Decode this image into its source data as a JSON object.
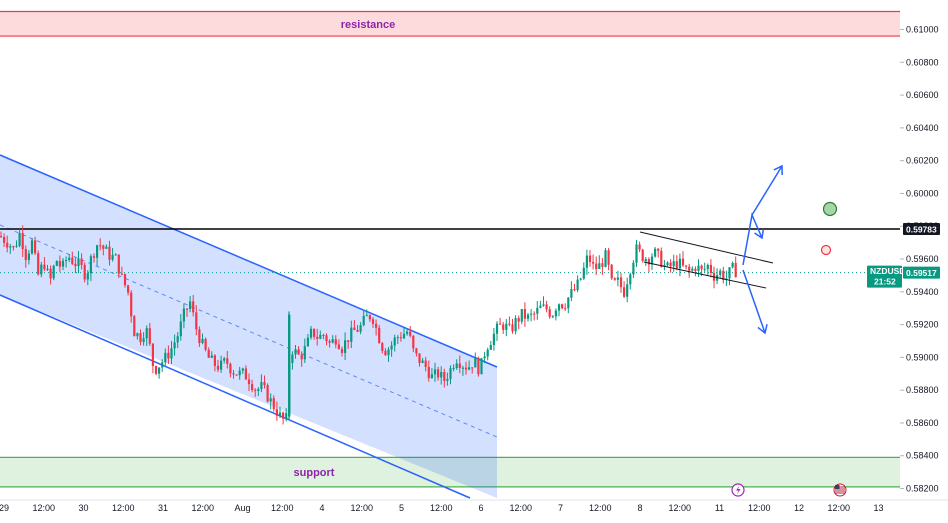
{
  "chart_data": {
    "type": "candlestick",
    "symbol": "NZDUSD",
    "current_price": "0.59517",
    "countdown": "21:52",
    "level_price": "0.59783",
    "y_ticks": [
      "0.61000",
      "0.60800",
      "0.60600",
      "0.60400",
      "0.60200",
      "0.60000",
      "0.59800",
      "0.59600",
      "0.59400",
      "0.59200",
      "0.59000",
      "0.58800",
      "0.58600",
      "0.58400",
      "0.58200"
    ],
    "x_ticks": [
      "29",
      "12:00",
      "30",
      "12:00",
      "31",
      "12:00",
      "Aug",
      "12:00",
      "4",
      "12:00",
      "5",
      "12:00",
      "6",
      "12:00",
      "7",
      "12:00",
      "8",
      "12:00",
      "11",
      "12:00",
      "12",
      "12:00",
      "13"
    ],
    "ylim": [
      0.5813,
      0.6118
    ],
    "zones": [
      {
        "label": "resistance",
        "from": 0.6096,
        "to": 0.6111,
        "color": "#f23645"
      },
      {
        "label": "support",
        "from": 0.5821,
        "to": 0.5839,
        "color": "#4caf50"
      }
    ],
    "price_path": [
      [
        0,
        0.5974
      ],
      [
        8,
        0.597
      ],
      [
        14,
        0.5966
      ],
      [
        20,
        0.5976
      ],
      [
        26,
        0.5962
      ],
      [
        32,
        0.597
      ],
      [
        38,
        0.595
      ],
      [
        44,
        0.5958
      ],
      [
        50,
        0.5946
      ],
      [
        56,
        0.596
      ],
      [
        62,
        0.5954
      ],
      [
        68,
        0.5962
      ],
      [
        74,
        0.5958
      ],
      [
        80,
        0.5956
      ],
      [
        86,
        0.595
      ],
      [
        92,
        0.5962
      ],
      [
        98,
        0.597
      ],
      [
        104,
        0.5966
      ],
      [
        110,
        0.5962
      ],
      [
        116,
        0.596
      ],
      [
        122,
        0.5948
      ],
      [
        128,
        0.594
      ],
      [
        134,
        0.5916
      ],
      [
        140,
        0.5912
      ],
      [
        146,
        0.5918
      ],
      [
        150,
        0.5906
      ],
      [
        154,
        0.5892
      ],
      [
        160,
        0.5896
      ],
      [
        166,
        0.59
      ],
      [
        172,
        0.5906
      ],
      [
        178,
        0.5914
      ],
      [
        184,
        0.5926
      ],
      [
        190,
        0.5934
      ],
      [
        196,
        0.5918
      ],
      [
        202,
        0.5908
      ],
      [
        208,
        0.59
      ],
      [
        214,
        0.5896
      ],
      [
        220,
        0.5894
      ],
      [
        226,
        0.5898
      ],
      [
        232,
        0.5892
      ],
      [
        238,
        0.589
      ],
      [
        244,
        0.589
      ],
      [
        250,
        0.5886
      ],
      [
        256,
        0.588
      ],
      [
        262,
        0.5882
      ],
      [
        268,
        0.5876
      ],
      [
        274,
        0.587
      ],
      [
        280,
        0.5864
      ],
      [
        286,
        0.586
      ],
      [
        290,
        0.5906
      ],
      [
        294,
        0.5904
      ],
      [
        300,
        0.59
      ],
      [
        306,
        0.5906
      ],
      [
        312,
        0.5916
      ],
      [
        318,
        0.5912
      ],
      [
        324,
        0.5914
      ],
      [
        330,
        0.5908
      ],
      [
        336,
        0.5912
      ],
      [
        342,
        0.5906
      ],
      [
        348,
        0.5912
      ],
      [
        354,
        0.5916
      ],
      [
        360,
        0.5918
      ],
      [
        366,
        0.5924
      ],
      [
        372,
        0.5926
      ],
      [
        378,
        0.5914
      ],
      [
        384,
        0.5904
      ],
      [
        390,
        0.5906
      ],
      [
        396,
        0.5912
      ],
      [
        402,
        0.5914
      ],
      [
        408,
        0.5916
      ],
      [
        414,
        0.5902
      ],
      [
        420,
        0.5898
      ],
      [
        426,
        0.5894
      ],
      [
        432,
        0.5888
      ],
      [
        438,
        0.589
      ],
      [
        444,
        0.5886
      ],
      [
        450,
        0.5892
      ],
      [
        456,
        0.59
      ],
      [
        462,
        0.5896
      ],
      [
        468,
        0.5894
      ],
      [
        474,
        0.5898
      ],
      [
        480,
        0.5892
      ],
      [
        486,
        0.5906
      ],
      [
        492,
        0.5912
      ],
      [
        498,
        0.5918
      ],
      [
        504,
        0.592
      ],
      [
        510,
        0.5916
      ],
      [
        516,
        0.5922
      ],
      [
        522,
        0.5926
      ],
      [
        528,
        0.5924
      ],
      [
        534,
        0.5926
      ],
      [
        540,
        0.593
      ],
      [
        546,
        0.593
      ],
      [
        552,
        0.5926
      ],
      [
        558,
        0.5934
      ],
      [
        564,
        0.5932
      ],
      [
        570,
        0.5938
      ],
      [
        576,
        0.5942
      ],
      [
        582,
        0.595
      ],
      [
        588,
        0.5962
      ],
      [
        594,
        0.5954
      ],
      [
        600,
        0.5956
      ],
      [
        606,
        0.5962
      ],
      [
        612,
        0.5944
      ],
      [
        618,
        0.5946
      ],
      [
        624,
        0.594
      ],
      [
        630,
        0.5954
      ],
      [
        636,
        0.5966
      ],
      [
        642,
        0.5962
      ],
      [
        648,
        0.596
      ],
      [
        654,
        0.5964
      ],
      [
        660,
        0.596
      ],
      [
        666,
        0.5954
      ],
      [
        672,
        0.5956
      ],
      [
        678,
        0.5958
      ],
      [
        684,
        0.5954
      ],
      [
        690,
        0.5952
      ],
      [
        696,
        0.5956
      ],
      [
        702,
        0.5952
      ],
      [
        708,
        0.5956
      ],
      [
        714,
        0.595
      ],
      [
        720,
        0.5952
      ],
      [
        726,
        0.5948
      ],
      [
        732,
        0.5954
      ],
      [
        738,
        0.5952
      ]
    ]
  }
}
